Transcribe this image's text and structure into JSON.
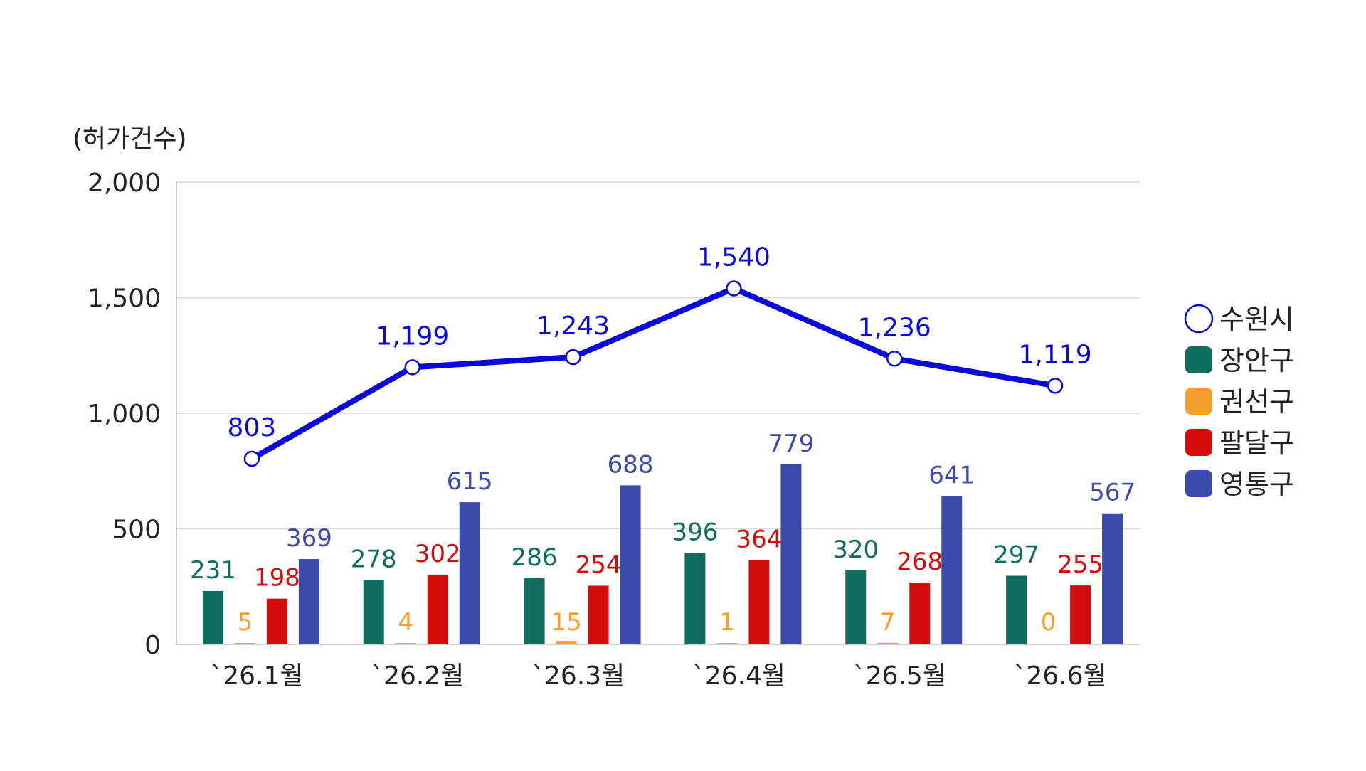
{
  "chart_data": {
    "type": "bar",
    "ylabel": "(허가건수)",
    "ylim": [
      0,
      2000
    ],
    "yticks": [
      0,
      500,
      1000,
      1500,
      2000
    ],
    "ytick_labels": [
      "0",
      "500",
      "1,000",
      "1,500",
      "2,000"
    ],
    "grid": true,
    "legend_position": "right",
    "categories": [
      "`26.1월",
      "`26.2월",
      "`26.3월",
      "`26.4월",
      "`26.5월",
      "`26.6월"
    ],
    "series": [
      {
        "name": "장안구",
        "kind": "bar",
        "color": "#0f6e5f",
        "values": [
          231,
          278,
          286,
          396,
          320,
          297
        ],
        "labels": [
          "231",
          "278",
          "286",
          "396",
          "320",
          "297"
        ]
      },
      {
        "name": "권선구",
        "kind": "bar",
        "color": "#f5a02c",
        "values": [
          5,
          4,
          15,
          1,
          7,
          0
        ],
        "labels": [
          "5",
          "4",
          "15",
          "1",
          "7",
          "0"
        ]
      },
      {
        "name": "팔달구",
        "kind": "bar",
        "color": "#d40c0c",
        "values": [
          198,
          302,
          254,
          364,
          268,
          255
        ],
        "labels": [
          "198",
          "302",
          "254",
          "364",
          "268",
          "255"
        ]
      },
      {
        "name": "영통구",
        "kind": "bar",
        "color": "#3c4aa9",
        "values": [
          369,
          615,
          688,
          779,
          641,
          567
        ],
        "labels": [
          "369",
          "615",
          "688",
          "779",
          "641",
          "567"
        ]
      }
    ],
    "line_series": {
      "name": "수원시",
      "kind": "line",
      "color": "#0a0ad4",
      "values": [
        803,
        1199,
        1243,
        1540,
        1236,
        1119
      ],
      "labels": [
        "803",
        "1,199",
        "1,243",
        "1,540",
        "1,236",
        "1,119"
      ]
    },
    "legend": [
      "수원시",
      "장안구",
      "권선구",
      "팔달구",
      "영통구"
    ]
  }
}
